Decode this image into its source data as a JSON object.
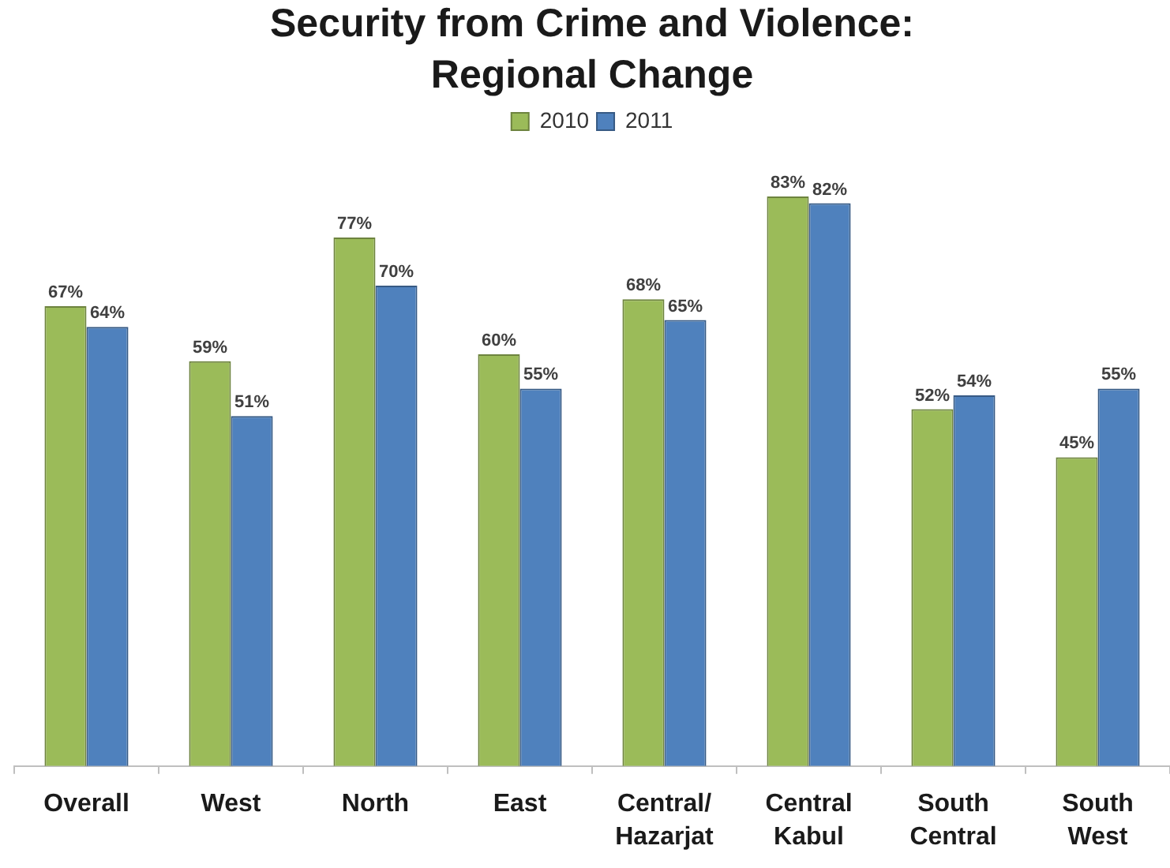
{
  "chart_data": {
    "type": "bar",
    "title": "Security from Crime and Violence:\nRegional Change",
    "categories": [
      "Overall",
      "West",
      "North",
      "East",
      "Central/\nHazarjat",
      "Central\nKabul",
      "South\nCentral",
      "South\nWest"
    ],
    "series": [
      {
        "name": "2010",
        "color": "#9bbb59",
        "values": [
          67,
          59,
          77,
          60,
          68,
          83,
          52,
          45
        ],
        "value_labels": [
          "67%",
          "59%",
          "77%",
          "60%",
          "68%",
          "83%",
          "52%",
          "45%"
        ]
      },
      {
        "name": "2011",
        "color": "#4f81bd",
        "values": [
          64,
          51,
          70,
          55,
          65,
          82,
          54,
          55
        ],
        "value_labels": [
          "64%",
          "51%",
          "70%",
          "55%",
          "65%",
          "82%",
          "54%",
          "55%"
        ]
      }
    ],
    "tick_labels": "x",
    "legend": "top"
  }
}
